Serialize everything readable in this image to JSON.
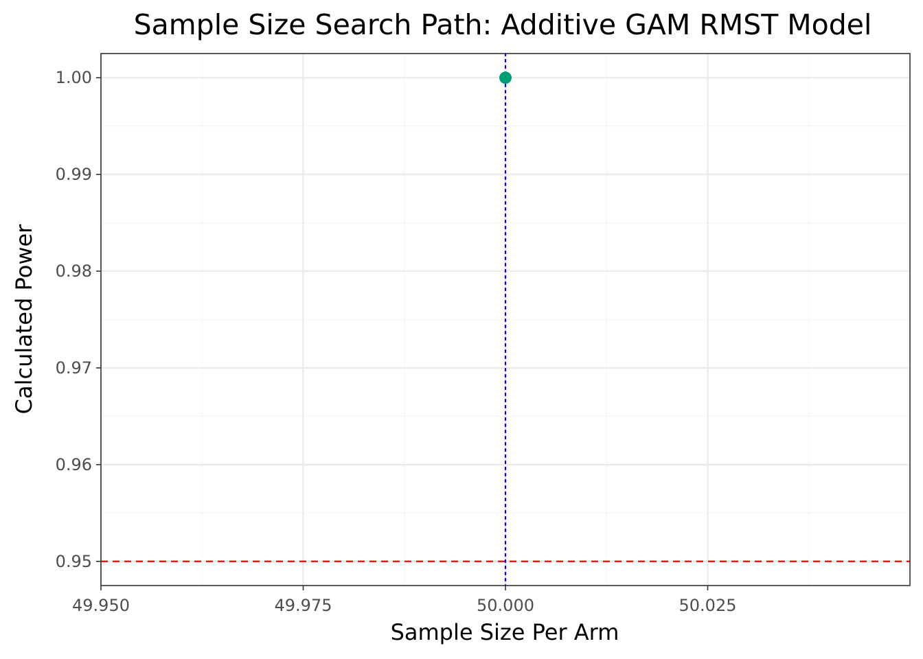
{
  "chart_data": {
    "type": "scatter",
    "title": "Sample Size Search Path: Additive GAM RMST Model",
    "xlabel": "Sample Size Per Arm",
    "ylabel": "Calculated Power",
    "xlim": [
      49.95,
      50.05
    ],
    "ylim": [
      0.9475,
      1.0025
    ],
    "x_ticks": [
      {
        "value": 49.95,
        "label": "49.950"
      },
      {
        "value": 49.975,
        "label": "49.975"
      },
      {
        "value": 50.0,
        "label": "50.000"
      },
      {
        "value": 50.025,
        "label": "50.025"
      }
    ],
    "x_minor_ticks": [
      49.9625,
      49.9875,
      50.0125,
      50.0375
    ],
    "y_ticks": [
      {
        "value": 0.95,
        "label": "0.95"
      },
      {
        "value": 0.96,
        "label": "0.96"
      },
      {
        "value": 0.97,
        "label": "0.97"
      },
      {
        "value": 0.98,
        "label": "0.98"
      },
      {
        "value": 0.99,
        "label": "0.99"
      },
      {
        "value": 1.0,
        "label": "1.00"
      }
    ],
    "y_minor_ticks": [
      0.955,
      0.965,
      0.975,
      0.985,
      0.995
    ],
    "points": [
      {
        "x": 50,
        "y": 1.0
      }
    ],
    "reference_lines": [
      {
        "orientation": "horizontal",
        "value": 0.95,
        "style": "dashed",
        "color": "#ff0000"
      },
      {
        "orientation": "vertical",
        "value": 50,
        "style": "dotted",
        "color": "#0000ff"
      }
    ],
    "grid": true,
    "legend": "none",
    "colors": {
      "point": "#009e73",
      "panel_border": "#333333",
      "grid_major": "#ebebeb",
      "grid_minor": "#f4f4f4"
    }
  }
}
